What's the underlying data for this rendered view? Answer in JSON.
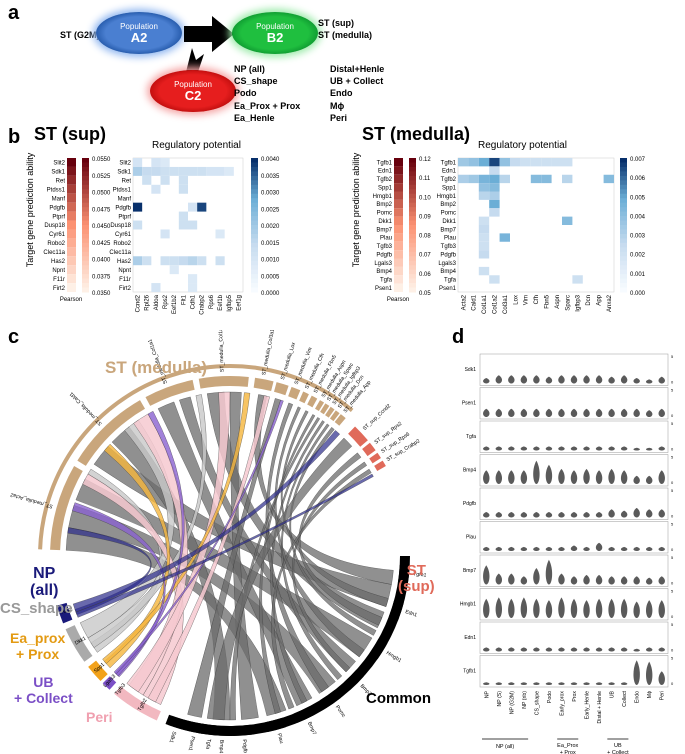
{
  "panels": {
    "a": "a",
    "b": "b",
    "c": "c",
    "d": "d"
  },
  "a": {
    "left_label": "ST (G2M)",
    "pop_a": {
      "top": "Population",
      "big": "A2"
    },
    "pop_b": {
      "top": "Population",
      "big": "B2"
    },
    "pop_c": {
      "top": "Population",
      "big": "C2"
    },
    "right_top": [
      "ST (sup)",
      "ST (medulla)"
    ],
    "list_col1": [
      "NP (all)",
      "CS_shape",
      "Podo",
      "Ea_Prox + Prox",
      "Ea_Henle"
    ],
    "list_col2": [
      "Distal+Henle",
      "UB + Collect",
      "Endo",
      "Mϕ",
      "Peri"
    ]
  },
  "b": {
    "sup_title": "ST (sup)",
    "med_title": "ST (medulla)",
    "y_axis": "Target gene prediction ability",
    "reg_label": "Regulatory potential",
    "pearson": "Pearson",
    "sup_rows": [
      "Slit2",
      "Sdk1",
      "Ret",
      "Ptdss1",
      "Manf",
      "Pdgfb",
      "Ptprf",
      "Dusp18",
      "Cyr61",
      "Robo2",
      "Clec11a",
      "Has2",
      "Npnt",
      "F11r",
      "Firt2"
    ],
    "sup_cols": [
      "Ccnd2",
      "Rpl26",
      "Aldoa",
      "Rps2",
      "Eef1b2",
      "Flt1",
      "Cdh1",
      "Crabp2",
      "Rps6",
      "Eef1b",
      "Igfbp5",
      "Eef1g"
    ],
    "sup_pearson_ticks": [
      "0.0550",
      "0.0525",
      "0.0500",
      "0.0475",
      "0.0450",
      "0.0425",
      "0.0400",
      "0.0375",
      "0.0350"
    ],
    "sup_reg_ticks": [
      "0.0040",
      "0.0035",
      "0.0030",
      "0.0025",
      "0.0020",
      "0.0015",
      "0.0010",
      "0.0005",
      "0.0000"
    ],
    "med_rows": [
      "Tgfb1",
      "Edn1",
      "Tgfb2",
      "Spp1",
      "Hmgb1",
      "Bmp2",
      "Pomc",
      "Dkk1",
      "Bmp7",
      "Plau",
      "Tgfb3",
      "Pdgfb",
      "Lgals3",
      "Bmp4",
      "Tgfa",
      "Psen1"
    ],
    "med_cols": [
      "Acta2",
      "Cald1",
      "Col1a1",
      "Col1a2",
      "Col3a1",
      "Lox",
      "Vim",
      "Cfh",
      "Fbn5",
      "Aspn",
      "Sparc",
      "Igfbp3",
      "Dcn",
      "App",
      "Anxa2"
    ],
    "med_pearson_ticks": [
      "0.12",
      "0.11",
      "0.10",
      "0.09",
      "0.08",
      "0.07",
      "0.06",
      "0.05"
    ],
    "med_reg_ticks": [
      "0.007",
      "0.006",
      "0.005",
      "0.004",
      "0.003",
      "0.002",
      "0.001",
      "0.000"
    ]
  },
  "c": {
    "st_medulla": "ST (medulla)",
    "st_sup": [
      "ST",
      "(sup)"
    ],
    "np": [
      "NP",
      "(all)"
    ],
    "cs": "CS_shape",
    "ea": [
      "Ea_prox",
      "+ Prox"
    ],
    "ub": [
      "UB",
      "+ Collect"
    ],
    "peri": "Peri",
    "common": "Common",
    "medulla_labels": [
      "ST_medulla_Acta2",
      "ST_medulla_Cald1",
      "ST_medulla_Col1a1",
      "ST_medulla_Col1a2",
      "ST_medulla_Col3a1",
      "ST_medulla_Lox",
      "ST_medulla_Vim",
      "ST_medulla_Cfh",
      "ST_medulla_Fbn5",
      "ST_medulla_Aspn",
      "ST_medulla_Sparc",
      "ST_medulla_Igfbp3",
      "ST_medulla_Dcn",
      "ST_medulla_App"
    ],
    "sup_labels": [
      "ST_sup_Ccnd2",
      "ST_sup_Rps2",
      "ST_sup_Rps6",
      "ST_sup_Crabp2"
    ],
    "left_labels": [
      "Has2",
      "Dkk1",
      "Spp1",
      "Lgals3",
      "Tgfb3",
      "Tgfb2"
    ],
    "bottom_labels": [
      "Sdk1",
      "Psen1",
      "Tgfa",
      "Bmp4",
      "Pdgfb",
      "Plau",
      "Bmp7",
      "Pomc",
      "Bmp2",
      "Hmgb1",
      "Edn1",
      "Tgfb1"
    ]
  },
  "d": {
    "genes": [
      "Sdk1",
      "Psen1",
      "Tgfa",
      "Bmp4",
      "Pdgfb",
      "Plau",
      "Bmp7",
      "Hmgb1",
      "Edn1",
      "Tgfb1"
    ],
    "groups": [
      "NP",
      "NP (S)",
      "NP (G2M)",
      "NP (rib)",
      "CS_shape",
      "Podo",
      "Early_prox",
      "Prox",
      "Early_Henle",
      "Distal + Henle",
      "UB",
      "Collect",
      "Endo",
      "Mϕ",
      "Peri"
    ],
    "bracket1": "NP (all)",
    "bracket2": [
      "Ea_Prox",
      "+ Prox"
    ],
    "bracket3": [
      "UB",
      "+ Collect"
    ]
  },
  "colors": {
    "popA": "#4a7fd1",
    "popB": "#1fbf3f",
    "popC": "#e61e1e",
    "tan": "#c9a67c",
    "common": "#000000",
    "sup": "#e06a5a",
    "np": "#1a1a7a",
    "ea": "#f2a21b",
    "ub": "#7b4fc6",
    "peri": "#f2b8c0",
    "heat": "#2166ac"
  }
}
